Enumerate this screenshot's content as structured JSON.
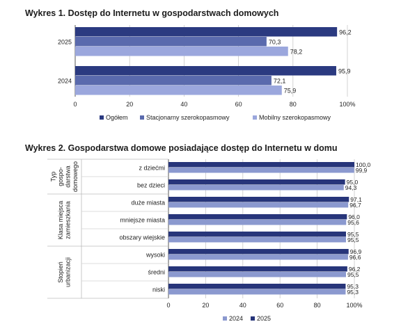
{
  "chart_data": [
    {
      "type": "bar",
      "orientation": "horizontal",
      "title": "Wykres 1. Dostęp do Internetu w gospodarstwach domowych",
      "categories": [
        "2025",
        "2024"
      ],
      "series": [
        {
          "name": "Ogółem",
          "values": [
            96.2,
            95.9
          ],
          "color": "#2b3a80"
        },
        {
          "name": "Stacjonarny szerokopasmowy",
          "values": [
            70.3,
            72.1
          ],
          "color": "#5a6aad"
        },
        {
          "name": "Mobilny szerokopasmowy",
          "values": [
            78.2,
            75.9
          ],
          "color": "#9ba7dd"
        }
      ],
      "value_labels": [
        [
          "96,2",
          "95,9"
        ],
        [
          "70,3",
          "72,1"
        ],
        [
          "78,2",
          "75,9"
        ]
      ],
      "xlim": [
        0,
        100
      ],
      "xticks": [
        "0",
        "20",
        "40",
        "60",
        "80",
        "100%"
      ],
      "grid": "vertical",
      "legend": "bottom"
    },
    {
      "type": "bar",
      "orientation": "horizontal",
      "title": "Wykres 2. Gospodarstwa domowe posiadające dostęp do Internetu w domu",
      "groups": [
        {
          "label": "Typ gospo-darstwa domowego",
          "lines": [
            "Typ",
            "gospo-",
            "darstwa",
            "domowego"
          ],
          "categories": [
            "z dziećmi",
            "bez dzieci"
          ]
        },
        {
          "label": "Klasa miejsca zamieszkania",
          "lines": [
            "Klasa miejsca",
            "zamieszkania"
          ],
          "categories": [
            "duże miasta",
            "mniejsze miasta",
            "obszary wiejskie"
          ]
        },
        {
          "label": "Stopień urbanizacji",
          "lines": [
            "Stopień",
            "urbanizacji"
          ],
          "categories": [
            "wysoki",
            "średni",
            "niski"
          ]
        }
      ],
      "categories": [
        "z dziećmi",
        "bez dzieci",
        "duże miasta",
        "mniejsze miasta",
        "obszary wiejskie",
        "wysoki",
        "średni",
        "niski"
      ],
      "series": [
        {
          "name": "2024",
          "values": [
            99.9,
            94.3,
            96.7,
            95.6,
            95.5,
            96.6,
            95.5,
            95.3
          ],
          "color": "#8b99cf"
        },
        {
          "name": "2025",
          "values": [
            100.0,
            95.0,
            97.1,
            96.0,
            95.5,
            96.9,
            96.2,
            95.3
          ],
          "color": "#27357a"
        }
      ],
      "value_labels": [
        [
          "99,9",
          "94,3",
          "96,7",
          "95,6",
          "95,5",
          "96,6",
          "95,5",
          "95,3"
        ],
        [
          "100,0",
          "95,0",
          "97,1",
          "96,0",
          "95,5",
          "96,9",
          "96,2",
          "95,3"
        ]
      ],
      "xlim": [
        0,
        100
      ],
      "xticks": [
        "0",
        "20",
        "40",
        "60",
        "80",
        "100%"
      ],
      "grid": "vertical",
      "legend": "bottom"
    }
  ]
}
